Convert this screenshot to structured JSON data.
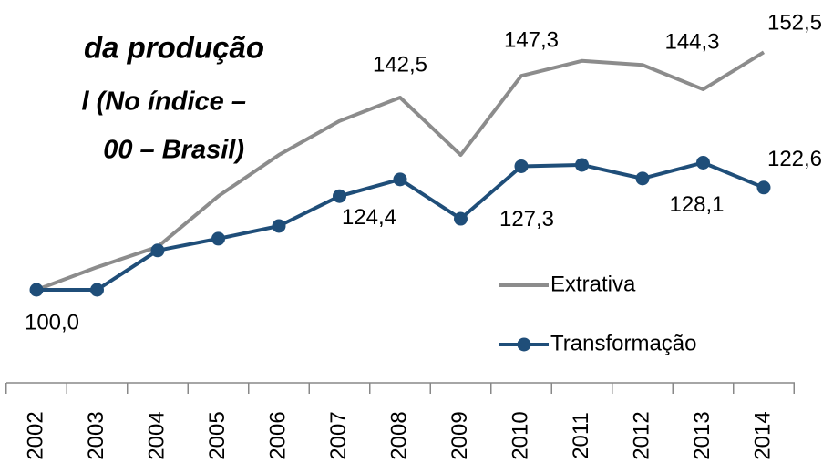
{
  "chart_data": {
    "type": "line",
    "title_lines": [
      "da produção",
      "l  (No índice –",
      "00 – Brasil)"
    ],
    "categories": [
      "2002",
      "2003",
      "2004",
      "2005",
      "2006",
      "2007",
      "2008",
      "2009",
      "2010",
      "2011",
      "2012",
      "2013",
      "2014"
    ],
    "series": [
      {
        "name": "Extrativa",
        "color": "#8c8c8c",
        "markers": false,
        "values": [
          100.0,
          105.0,
          109.5,
          120.7,
          129.8,
          137.3,
          142.5,
          129.8,
          147.3,
          150.6,
          149.7,
          144.3,
          152.5
        ],
        "value_labels": [
          null,
          null,
          null,
          null,
          null,
          null,
          "142,5",
          null,
          "147,3",
          null,
          null,
          "144,3",
          "152,5"
        ]
      },
      {
        "name": "Transformação",
        "color": "#1f4e79",
        "markers": true,
        "values": [
          100.0,
          100.0,
          108.7,
          111.3,
          114.1,
          120.7,
          124.4,
          115.7,
          127.3,
          127.6,
          124.6,
          128.1,
          122.6
        ],
        "value_labels": [
          "100,0",
          null,
          null,
          null,
          null,
          null,
          "124,4",
          null,
          "127,3",
          null,
          null,
          "128,1",
          "122,6"
        ]
      }
    ],
    "ylim": [
      90,
      160
    ],
    "legend": "right"
  }
}
